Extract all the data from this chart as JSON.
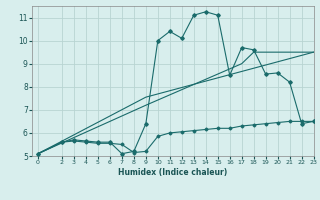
{
  "bg_color": "#d8eeed",
  "grid_color": "#b8d4d2",
  "line_color": "#1a6b6b",
  "marker_color": "#1a6b6b",
  "line1_x": [
    0,
    2,
    3,
    4,
    5,
    6,
    7,
    8,
    9,
    10,
    11,
    12,
    13,
    14,
    15,
    16,
    17,
    18,
    19,
    20,
    21,
    22,
    23
  ],
  "line1_y": [
    5.1,
    5.6,
    5.7,
    5.65,
    5.6,
    5.6,
    5.1,
    5.2,
    6.4,
    10.0,
    10.4,
    10.1,
    11.1,
    11.25,
    11.1,
    8.5,
    9.7,
    9.6,
    8.55,
    8.6,
    8.2,
    6.4,
    6.5
  ],
  "line2_x": [
    0,
    2,
    3,
    4,
    5,
    6,
    7,
    8,
    9,
    10,
    11,
    12,
    13,
    14,
    15,
    16,
    17,
    18,
    19,
    20,
    21,
    22,
    23
  ],
  "line2_y": [
    5.1,
    5.6,
    5.65,
    5.6,
    5.55,
    5.55,
    5.5,
    5.15,
    5.2,
    5.85,
    6.0,
    6.05,
    6.1,
    6.15,
    6.2,
    6.2,
    6.3,
    6.35,
    6.4,
    6.45,
    6.5,
    6.5,
    6.5
  ],
  "line3_x": [
    0,
    9,
    23
  ],
  "line3_y": [
    5.1,
    7.55,
    9.5
  ],
  "line4_x": [
    0,
    9,
    17,
    18,
    23
  ],
  "line4_y": [
    5.1,
    7.2,
    9.0,
    9.5,
    9.5
  ],
  "xlabel": "Humidex (Indice chaleur)",
  "xlim": [
    -0.5,
    23
  ],
  "ylim": [
    5,
    11.5
  ],
  "yticks": [
    5,
    6,
    7,
    8,
    9,
    10,
    11
  ],
  "xticks": [
    0,
    2,
    3,
    4,
    5,
    6,
    7,
    8,
    9,
    10,
    11,
    12,
    13,
    14,
    15,
    16,
    17,
    18,
    19,
    20,
    21,
    22,
    23
  ]
}
